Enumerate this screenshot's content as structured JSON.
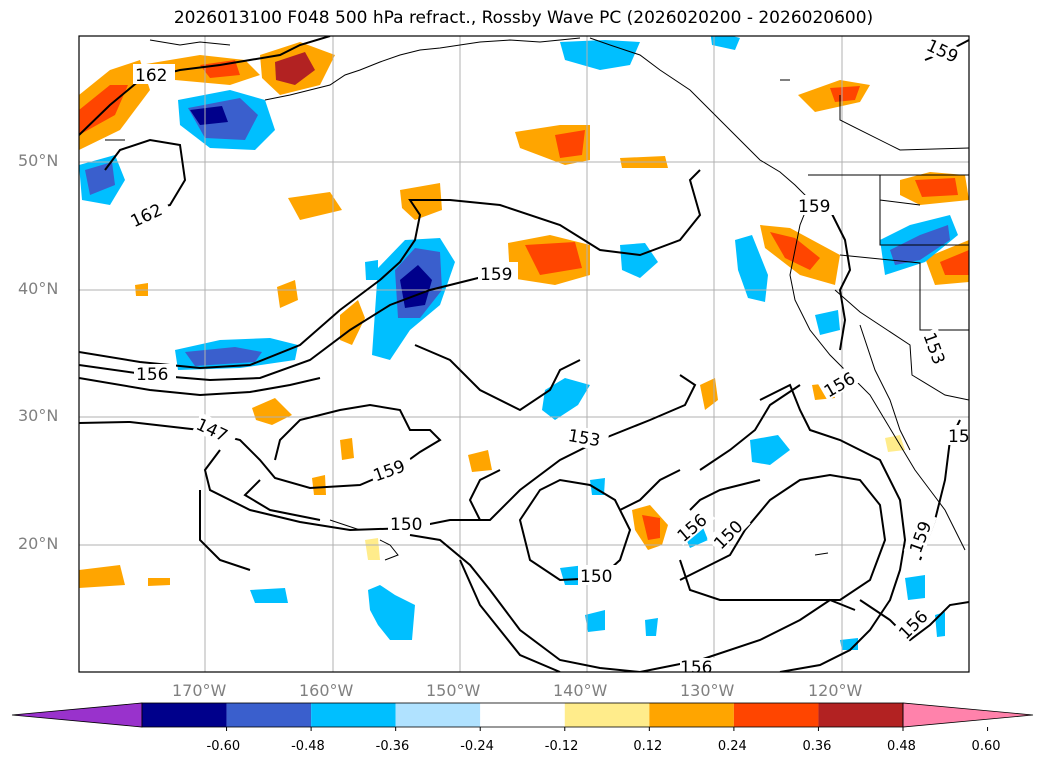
{
  "title": "2026013100 F048 500 hPa refract., Rossby Wave PC (2026020200 - 2026020600)",
  "lat_labels": [
    "50°N",
    "40°N",
    "30°N",
    "20°N"
  ],
  "lon_labels": [
    "170°W",
    "160°W",
    "150°W",
    "140°W",
    "130°W",
    "120°W"
  ],
  "contour_labels": [
    "162",
    "162",
    "159",
    "156",
    "147",
    "159",
    "150",
    "153",
    "159",
    "156",
    "150",
    "150",
    "156",
    "156",
    "153",
    "159",
    "156",
    "159",
    "15"
  ],
  "colorbar": {
    "tick_labels": [
      "-0.60",
      "-0.48",
      "-0.36",
      "-0.24",
      "-0.12",
      "0.12",
      "0.24",
      "0.36",
      "0.48",
      "0.60"
    ],
    "colors": [
      "#9932CC",
      "#00008B",
      "#3A5FCD",
      "#00BFFF",
      "#B0E2FF",
      "#FFFFFF",
      "#FFEC8B",
      "#FFA500",
      "#FF4500",
      "#B22222",
      "#FF82AB"
    ]
  }
}
